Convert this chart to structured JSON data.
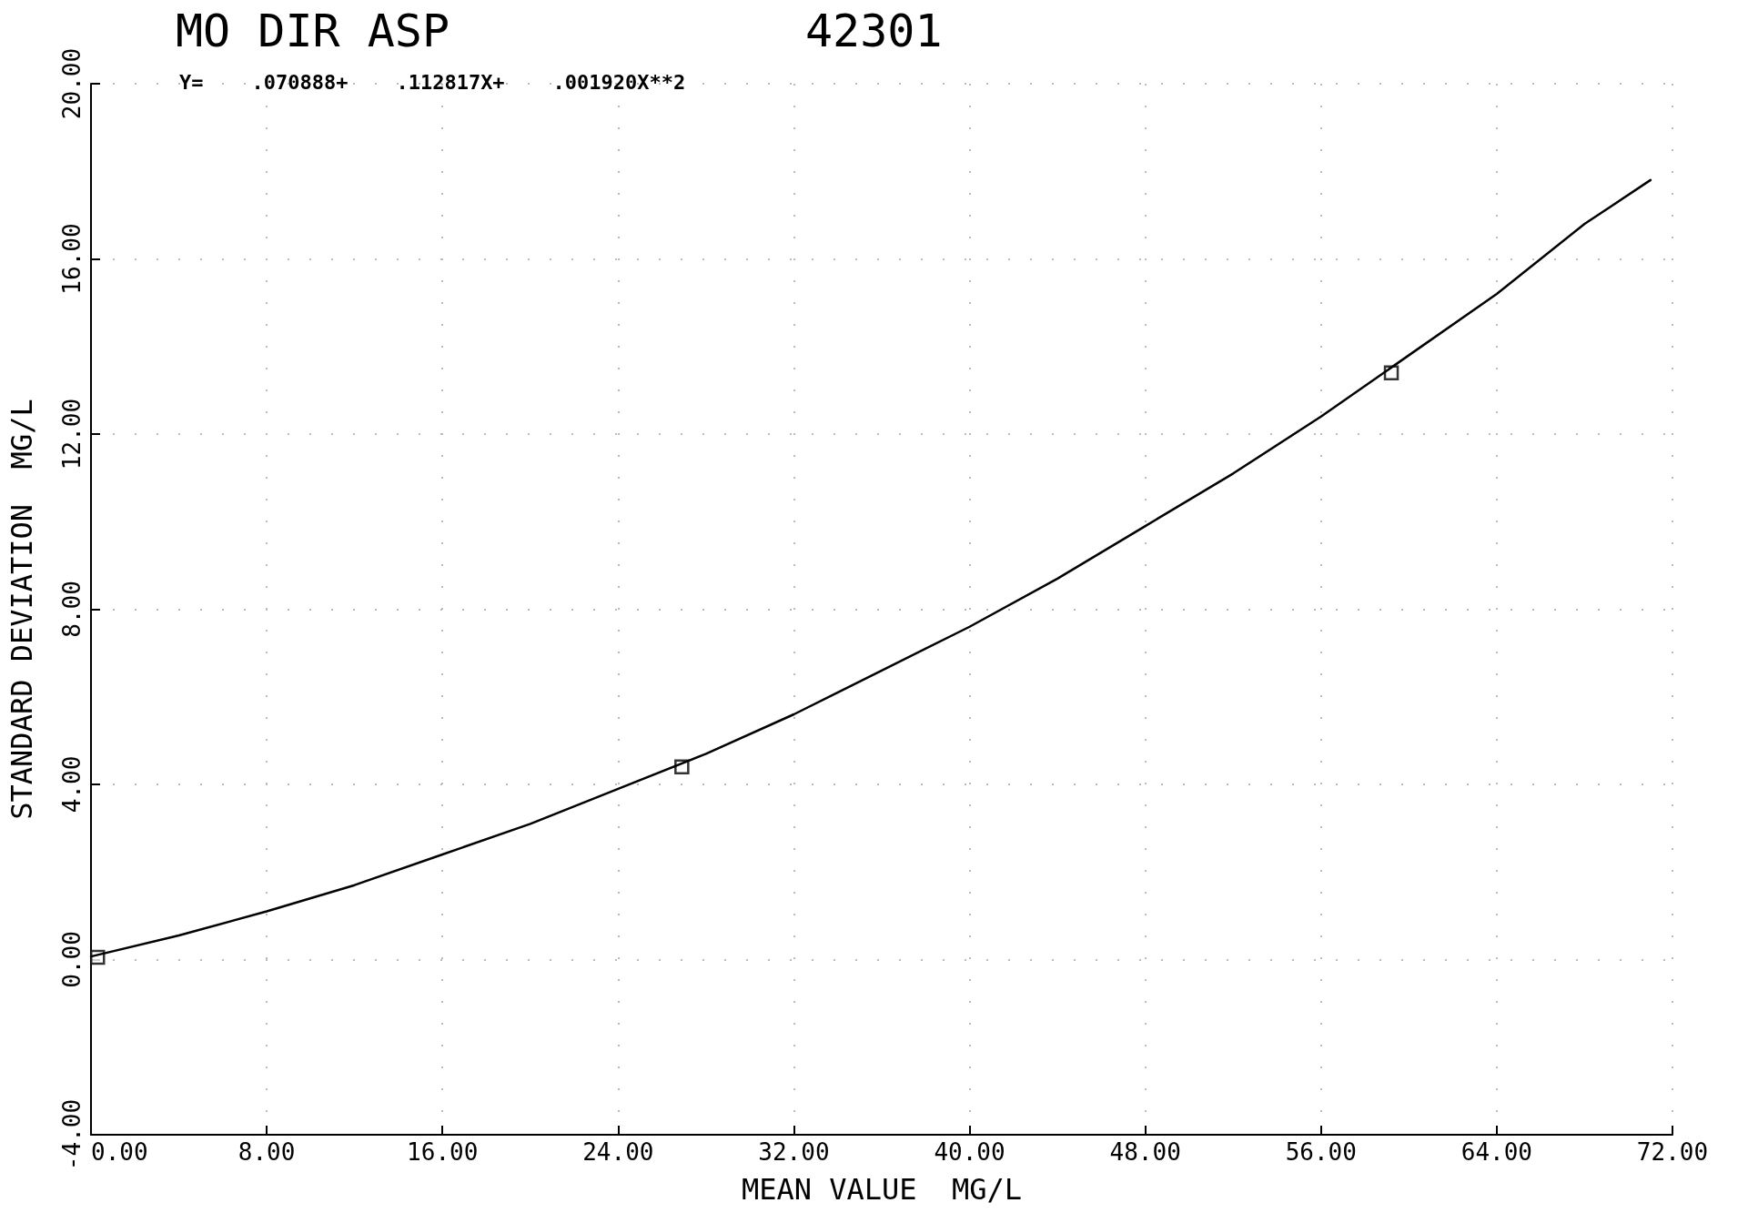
{
  "chart_data": {
    "type": "scatter",
    "title": "MO DIR ASP",
    "subtitle": "Y=    .070888+    .112817X+    .001920X**2",
    "annotations": [
      "42301"
    ],
    "xlabel": "MEAN VALUE  MG/L",
    "ylabel": "STANDARD DEVIATION  MG/L",
    "series": [
      {
        "color": "#000000",
        "marker": "square",
        "x": [
          0.3,
          26.9,
          59.2
        ],
        "values": [
          0.05,
          4.4,
          13.4
        ]
      },
      {
        "type": "line",
        "color": "#000000",
        "marker": "none",
        "line_style": "solid",
        "x": [
          0,
          4,
          8,
          12,
          16,
          20,
          24,
          28,
          32,
          36,
          40,
          44,
          48,
          52,
          56,
          60,
          64,
          68,
          71
        ],
        "values": [
          0.07,
          0.55,
          1.1,
          1.7,
          2.4,
          3.1,
          3.9,
          4.7,
          5.6,
          6.6,
          7.6,
          8.7,
          9.9,
          11.1,
          12.4,
          13.8,
          15.2,
          16.8,
          17.8
        ]
      }
    ],
    "xlim": [
      0,
      72
    ],
    "ylim": [
      -4,
      20
    ],
    "xticks": [
      {
        "value": 0,
        "label": "0.00"
      },
      {
        "value": 8,
        "label": "8.00"
      },
      {
        "value": 16,
        "label": "16.00"
      },
      {
        "value": 24,
        "label": "24.00"
      },
      {
        "value": 32,
        "label": "32.00"
      },
      {
        "value": 40,
        "label": "40.00"
      },
      {
        "value": 48,
        "label": "48.00"
      },
      {
        "value": 56,
        "label": "56.00"
      },
      {
        "value": 64,
        "label": "64.00"
      },
      {
        "value": 72,
        "label": "72.00"
      }
    ],
    "yticks": [
      {
        "value": -4,
        "label": "-4.00"
      },
      {
        "value": 0,
        "label": "0.00"
      },
      {
        "value": 4,
        "label": "4.00"
      },
      {
        "value": 8,
        "label": "8.00"
      },
      {
        "value": 12,
        "label": "12.00"
      },
      {
        "value": 16,
        "label": "16.00"
      },
      {
        "value": 20,
        "label": "20.00"
      }
    ],
    "grid": true
  }
}
